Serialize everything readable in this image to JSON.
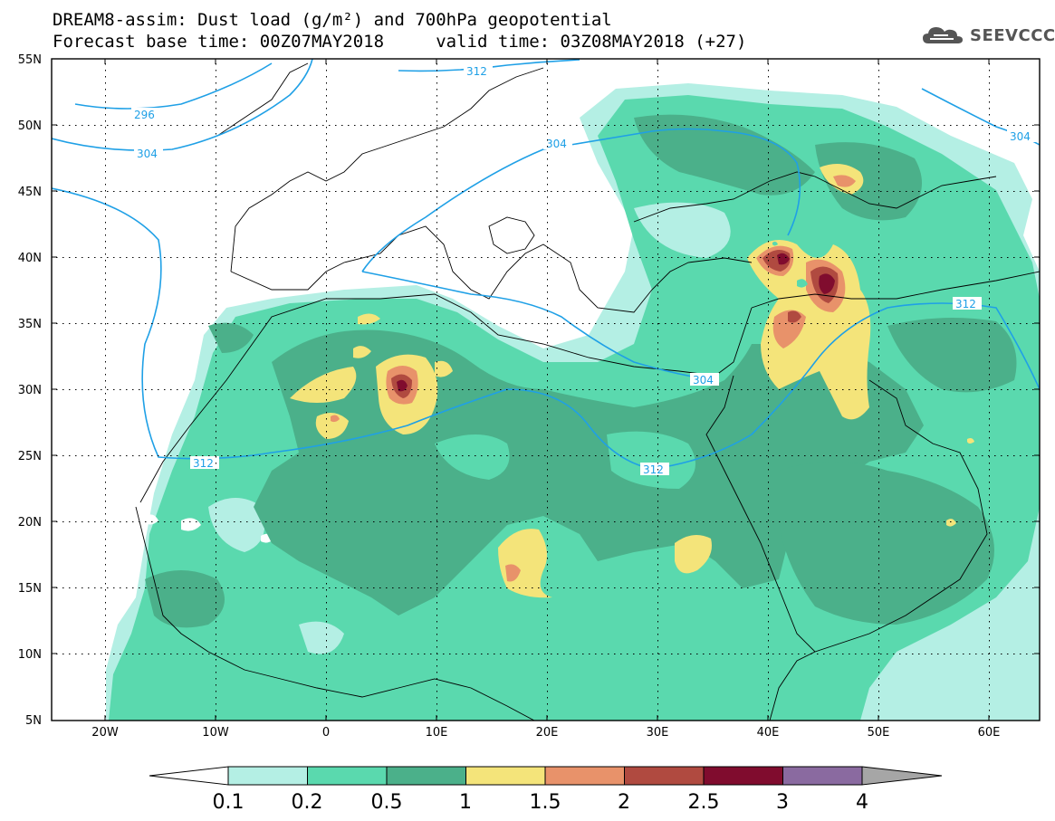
{
  "title": {
    "line1": "DREAM8-assim: Dust load (g/m²) and 700hPa geopotential",
    "line2": "Forecast base time: 00Z07MAY2018     valid time: 03Z08MAY2018 (+27)"
  },
  "logo": {
    "text": "SEEVCCC",
    "icon": "cloud-icon"
  },
  "lat_labels": [
    "55N",
    "50N",
    "45N",
    "40N",
    "35N",
    "30N",
    "25N",
    "20N",
    "15N",
    "10N",
    "5N"
  ],
  "lon_labels": [
    "20W",
    "10W",
    "0",
    "10E",
    "20E",
    "30E",
    "40E",
    "50E",
    "60E"
  ],
  "contour_labels": [
    "296",
    "304",
    "312",
    "304",
    "304",
    "312",
    "312",
    "304",
    "312"
  ],
  "colorbar": {
    "levels": [
      "0.1",
      "0.2",
      "0.5",
      "1",
      "1.5",
      "2",
      "2.5",
      "3",
      "4"
    ],
    "colors": [
      "#b4efe4",
      "#5ad9ae",
      "#4bb08a",
      "#f4e47a",
      "#e8926a",
      "#b04a40",
      "#800c2e",
      "#8a6aa0",
      "#a6a6a6"
    ]
  },
  "colors": {
    "light_teal": "#b4efe4",
    "teal": "#5ad9ae",
    "dark_teal": "#4bb08a",
    "yellow": "#f4e47a",
    "salmon": "#e8926a",
    "brown": "#b04a40",
    "maroon": "#800c2e",
    "contour_blue": "#1fa0e6"
  }
}
